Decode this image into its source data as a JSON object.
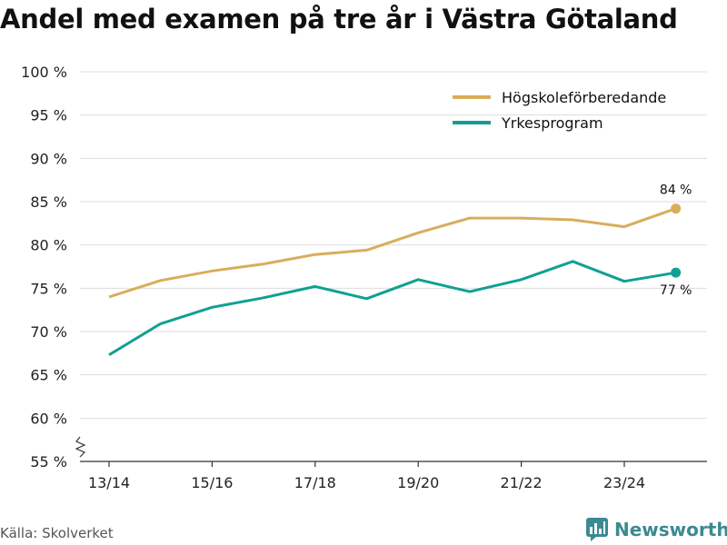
{
  "chart_data": {
    "type": "line",
    "title": "Andel med examen på tre år i Västra Götaland",
    "categories": [
      "13/14",
      "14/15",
      "15/16",
      "16/17",
      "17/18",
      "18/19",
      "19/20",
      "20/21",
      "21/22",
      "22/23",
      "23/24",
      "24/25"
    ],
    "x_tick_labels": [
      "13/14",
      "15/16",
      "17/18",
      "19/20",
      "21/22",
      "23/24"
    ],
    "y_tick_labels": [
      "55 %",
      "60 %",
      "65 %",
      "70 %",
      "75 %",
      "80 %",
      "85 %",
      "90 %",
      "95 %",
      "100 %"
    ],
    "ylim": [
      55,
      100
    ],
    "series": [
      {
        "name": "Högskoleförberedande",
        "color": "#d9ad5b",
        "values": [
          74.0,
          75.9,
          77.0,
          77.8,
          78.9,
          79.4,
          81.4,
          83.1,
          83.1,
          82.9,
          82.1,
          84.2
        ],
        "end_label": "84 %"
      },
      {
        "name": "Yrkesprogram",
        "color": "#10a093",
        "values": [
          67.3,
          70.9,
          72.8,
          73.9,
          75.2,
          73.8,
          76.0,
          74.6,
          76.0,
          78.1,
          75.8,
          76.8
        ],
        "end_label": "77 %"
      }
    ],
    "legend_position": "top-right"
  },
  "source": "Källa: Skolverket",
  "brand": "Newsworthy"
}
